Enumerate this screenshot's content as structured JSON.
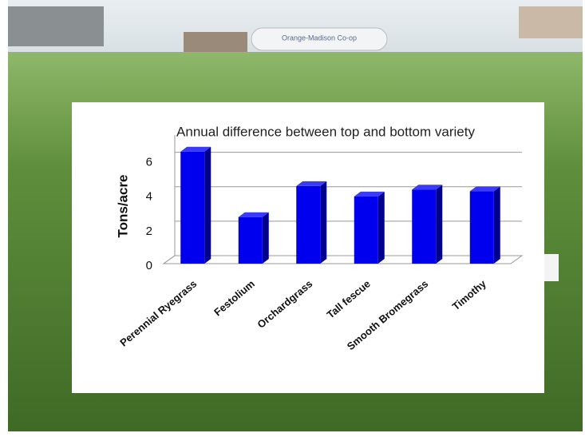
{
  "photo": {
    "sign": "Orange-Madison Co-op"
  },
  "chart_data": {
    "type": "bar3d",
    "title": "Annual  difference between top and bottom variety",
    "y_label": "Tons/acre",
    "categories": [
      "Perennial Ryegrass",
      "Festolium",
      "Orchardgrass",
      "Tall fescue",
      "Smooth Bromegrass",
      "Timothy"
    ],
    "values": [
      6.5,
      2.7,
      4.5,
      3.9,
      4.3,
      4.2
    ],
    "color": "#0000ee",
    "ylim": [
      0,
      7
    ],
    "yticks": [
      0,
      2,
      4,
      6
    ],
    "grid": true
  }
}
